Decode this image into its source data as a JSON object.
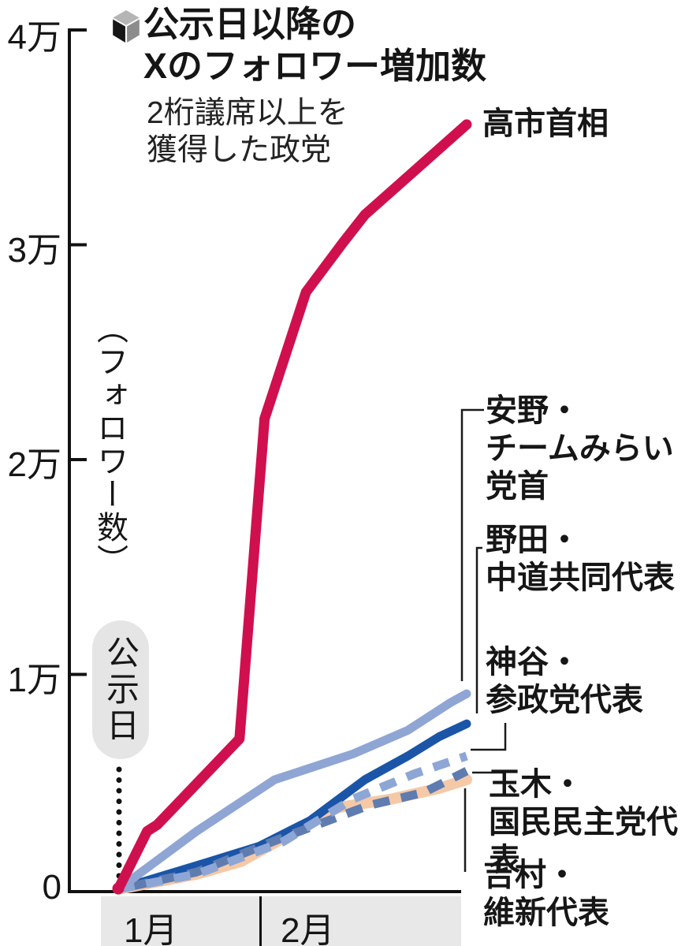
{
  "header": {
    "title": "公示日以降の\nXのフォロワー増加数",
    "subtitle": "2桁議席以上を\n獲得した政党",
    "bullet_icon": "cube-icon"
  },
  "colors": {
    "takaichi_red": "#d0104e",
    "anno_periwinkle": "#8fa6d4",
    "noda_blue": "#1a55a7",
    "kamiya_periwinkle_dashed": "#8ea6d5",
    "tamaki_slate_dashed": "#5f7cb0",
    "yoshimura_peach": "#f5c9a6",
    "axis_black": "#111111",
    "month_band_gray": "#e8e8e8",
    "pill_gray": "#e5e5e5"
  },
  "chart_data": {
    "type": "line",
    "title": "公示日以降のXのフォロワー増加数",
    "subtitle": "2桁議席以上を獲得した政党",
    "ylabel": "（フォロワー数）",
    "y_unit": "followers",
    "ylim": [
      0,
      40000
    ],
    "grid": false,
    "legend_position": "right-edge-labels",
    "x_axis": {
      "months": [
        "1月",
        "2月"
      ],
      "marker": "公示日",
      "note": "x is fraction of span from announcement day (0) to latest reading (1)"
    },
    "y_ticks": [
      {
        "label": "4万",
        "value": 40000
      },
      {
        "label": "3万",
        "value": 30000
      },
      {
        "label": "2万",
        "value": 20000
      },
      {
        "label": "1万",
        "value": 10000
      },
      {
        "label": "0",
        "value": 0
      }
    ],
    "series": [
      {
        "id": "yoshimura",
        "name": "吉村・維新代表",
        "label": "吉村・\n維新代表",
        "color": "#f5c9a6",
        "style": "solid",
        "width": 14,
        "dash": null,
        "points": [
          [
            0,
            0
          ],
          [
            0.225,
            700
          ],
          [
            0.353,
            1300
          ],
          [
            0.629,
            3800
          ],
          [
            0.786,
            4200
          ],
          [
            0.921,
            4700
          ],
          [
            1,
            5100
          ]
        ]
      },
      {
        "id": "noda",
        "name": "野田・中道共同代表",
        "label": "野田・\n中道共同代表",
        "color": "#1a55a7",
        "style": "solid",
        "width": 11,
        "dash": null,
        "points": [
          [
            0,
            0
          ],
          [
            0.225,
            1100
          ],
          [
            0.404,
            2000
          ],
          [
            0.551,
            3200
          ],
          [
            0.708,
            5100
          ],
          [
            0.831,
            6200
          ],
          [
            0.921,
            7100
          ],
          [
            1,
            7700
          ]
        ]
      },
      {
        "id": "tamaki",
        "name": "玉木・国民民主党代表",
        "label": "玉木・\n国民民主党代表",
        "color": "#5f7cb0",
        "style": "dashed",
        "width": 11,
        "dash": "21 15",
        "dashoffset": 18,
        "points": [
          [
            0,
            0
          ],
          [
            0.225,
            800
          ],
          [
            0.472,
            2400
          ],
          [
            0.719,
            3900
          ],
          [
            0.876,
            4500
          ],
          [
            1,
            5500
          ]
        ]
      },
      {
        "id": "kamiya",
        "name": "神谷・参政党代表",
        "label": "神谷・\n参政党代表",
        "color": "#8ea6d5",
        "style": "dashed",
        "width": 11,
        "dash": "21 15",
        "dashoffset": 0,
        "points": [
          [
            0,
            0
          ],
          [
            0.225,
            700
          ],
          [
            0.472,
            2200
          ],
          [
            0.674,
            4200
          ],
          [
            0.854,
            5400
          ],
          [
            1,
            6200
          ]
        ]
      },
      {
        "id": "anno",
        "name": "安野・チームみらい党首",
        "label": "安野・\nチームみらい\n党首",
        "color": "#8fa6d4",
        "style": "solid",
        "width": 11,
        "dash": null,
        "points": [
          [
            0,
            0
          ],
          [
            0.225,
            2700
          ],
          [
            0.449,
            5100
          ],
          [
            0.674,
            6300
          ],
          [
            0.831,
            7400
          ],
          [
            0.955,
            8700
          ],
          [
            1,
            9100
          ]
        ]
      },
      {
        "id": "takaichi",
        "name": "高市首相",
        "label": "高市首相",
        "color": "#d0104e",
        "style": "solid",
        "width": 13,
        "dash": null,
        "points": [
          [
            0,
            0
          ],
          [
            0.083,
            2700
          ],
          [
            0.112,
            3000
          ],
          [
            0.348,
            7000
          ],
          [
            0.42,
            21900
          ],
          [
            0.539,
            27800
          ],
          [
            0.645,
            30100
          ],
          [
            0.708,
            31400
          ],
          [
            1,
            35600
          ]
        ]
      }
    ]
  }
}
